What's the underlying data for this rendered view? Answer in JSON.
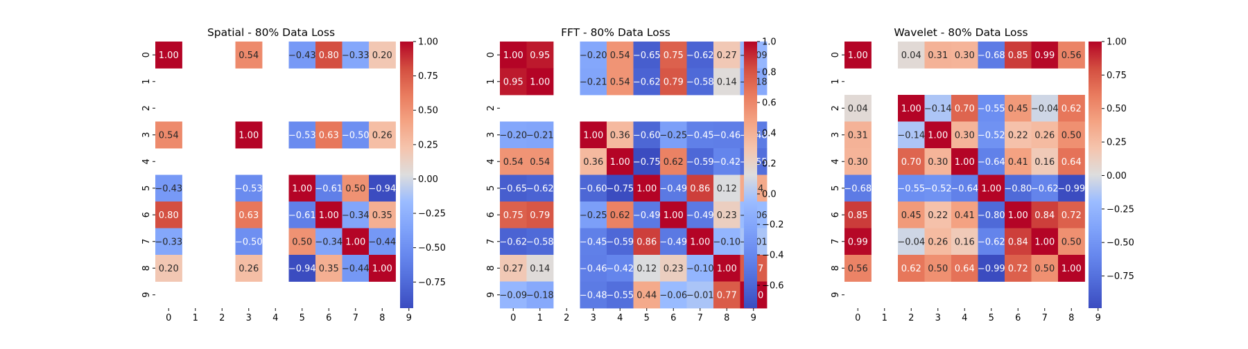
{
  "chart_data": [
    {
      "type": "heatmap",
      "title": "Spatial - 80% Data Loss",
      "x_labels": [
        "0",
        "1",
        "2",
        "3",
        "4",
        "5",
        "6",
        "7",
        "8",
        "9"
      ],
      "y_labels": [
        "0",
        "1",
        "2",
        "3",
        "4",
        "5",
        "6",
        "7",
        "8",
        "9"
      ],
      "values": [
        [
          1.0,
          null,
          null,
          0.54,
          null,
          -0.43,
          0.8,
          -0.33,
          0.2,
          null
        ],
        [
          null,
          null,
          null,
          null,
          null,
          null,
          null,
          null,
          null,
          null
        ],
        [
          null,
          null,
          null,
          null,
          null,
          null,
          null,
          null,
          null,
          null
        ],
        [
          0.54,
          null,
          null,
          1.0,
          null,
          -0.53,
          0.63,
          -0.5,
          0.26,
          null
        ],
        [
          null,
          null,
          null,
          null,
          null,
          null,
          null,
          null,
          null,
          null
        ],
        [
          -0.43,
          null,
          null,
          -0.53,
          null,
          1.0,
          -0.61,
          0.5,
          -0.94,
          null
        ],
        [
          0.8,
          null,
          null,
          0.63,
          null,
          -0.61,
          1.0,
          -0.34,
          0.35,
          null
        ],
        [
          -0.33,
          null,
          null,
          -0.5,
          null,
          0.5,
          -0.34,
          1.0,
          -0.44,
          null
        ],
        [
          0.2,
          null,
          null,
          0.26,
          null,
          -0.94,
          0.35,
          -0.44,
          1.0,
          null
        ],
        [
          null,
          null,
          null,
          null,
          null,
          null,
          null,
          null,
          null,
          null
        ]
      ],
      "vmin": -0.94,
      "vmax": 1.0,
      "colormap": "coolwarm",
      "colorbar_ticks": [
        {
          "v": 1.0,
          "label": "1.00"
        },
        {
          "v": 0.75,
          "label": "0.75"
        },
        {
          "v": 0.5,
          "label": "0.50"
        },
        {
          "v": 0.25,
          "label": "0.25"
        },
        {
          "v": 0.0,
          "label": "0.00"
        },
        {
          "v": -0.25,
          "label": "−0.25"
        },
        {
          "v": -0.5,
          "label": "−0.50"
        },
        {
          "v": -0.75,
          "label": "−0.75"
        }
      ],
      "annotation_format": "2f"
    },
    {
      "type": "heatmap",
      "title": "FFT - 80% Data Loss",
      "x_labels": [
        "0",
        "1",
        "2",
        "3",
        "4",
        "5",
        "6",
        "7",
        "8",
        "9"
      ],
      "y_labels": [
        "0",
        "1",
        "2",
        "3",
        "4",
        "5",
        "6",
        "7",
        "8",
        "9"
      ],
      "values": [
        [
          1.0,
          0.95,
          null,
          -0.2,
          0.54,
          -0.65,
          0.75,
          -0.62,
          0.27,
          -0.09
        ],
        [
          0.95,
          1.0,
          null,
          -0.21,
          0.54,
          -0.62,
          0.79,
          -0.58,
          0.14,
          -0.18
        ],
        [
          null,
          null,
          null,
          null,
          null,
          null,
          null,
          null,
          null,
          null
        ],
        [
          -0.2,
          -0.21,
          null,
          1.0,
          0.36,
          -0.6,
          -0.25,
          -0.45,
          -0.46,
          -0.48
        ],
        [
          0.54,
          0.54,
          null,
          0.36,
          1.0,
          -0.75,
          0.62,
          -0.59,
          -0.42,
          -0.55
        ],
        [
          -0.65,
          -0.62,
          null,
          -0.6,
          -0.75,
          1.0,
          -0.49,
          0.86,
          0.12,
          0.44
        ],
        [
          0.75,
          0.79,
          null,
          -0.25,
          0.62,
          -0.49,
          1.0,
          -0.49,
          0.23,
          -0.06
        ],
        [
          -0.62,
          -0.58,
          null,
          -0.45,
          -0.59,
          0.86,
          -0.49,
          1.0,
          -0.1,
          -0.01
        ],
        [
          0.27,
          0.14,
          null,
          -0.46,
          -0.42,
          0.12,
          0.23,
          -0.1,
          1.0,
          0.77
        ],
        [
          -0.09,
          -0.18,
          null,
          -0.48,
          -0.55,
          0.44,
          -0.06,
          -0.01,
          0.77,
          1.0
        ]
      ],
      "vmin": -0.75,
      "vmax": 1.0,
      "colormap": "coolwarm",
      "colorbar_ticks": [
        {
          "v": 1.0,
          "label": "1.0"
        },
        {
          "v": 0.8,
          "label": "0.8"
        },
        {
          "v": 0.6,
          "label": "0.6"
        },
        {
          "v": 0.4,
          "label": "0.4"
        },
        {
          "v": 0.2,
          "label": "0.2"
        },
        {
          "v": 0.0,
          "label": "0.0"
        },
        {
          "v": -0.2,
          "label": "−0.2"
        },
        {
          "v": -0.4,
          "label": "−0.4"
        },
        {
          "v": -0.6,
          "label": "−0.6"
        }
      ],
      "annotation_format": "2f"
    },
    {
      "type": "heatmap",
      "title": "Wavelet - 80% Data Loss",
      "x_labels": [
        "0",
        "1",
        "2",
        "3",
        "4",
        "5",
        "6",
        "7",
        "8",
        "9"
      ],
      "y_labels": [
        "0",
        "1",
        "2",
        "3",
        "4",
        "5",
        "6",
        "7",
        "8",
        "9"
      ],
      "values": [
        [
          1.0,
          null,
          0.04,
          0.31,
          0.3,
          -0.68,
          0.85,
          0.99,
          0.56,
          null
        ],
        [
          null,
          null,
          null,
          null,
          null,
          null,
          null,
          null,
          null,
          null
        ],
        [
          0.04,
          null,
          1.0,
          -0.14,
          0.7,
          -0.55,
          0.45,
          -0.04,
          0.62,
          null
        ],
        [
          0.31,
          null,
          -0.14,
          1.0,
          0.3,
          -0.52,
          0.22,
          0.26,
          0.5,
          null
        ],
        [
          0.3,
          null,
          0.7,
          0.3,
          1.0,
          -0.64,
          0.41,
          0.16,
          0.64,
          null
        ],
        [
          -0.68,
          null,
          -0.55,
          -0.52,
          -0.64,
          1.0,
          -0.8,
          -0.62,
          -0.99,
          null
        ],
        [
          0.85,
          null,
          0.45,
          0.22,
          0.41,
          -0.8,
          1.0,
          0.84,
          0.72,
          null
        ],
        [
          0.99,
          null,
          -0.04,
          0.26,
          0.16,
          -0.62,
          0.84,
          1.0,
          0.5,
          null
        ],
        [
          0.56,
          null,
          0.62,
          0.5,
          0.64,
          -0.99,
          0.72,
          0.5,
          1.0,
          null
        ],
        [
          null,
          null,
          null,
          null,
          null,
          null,
          null,
          null,
          null,
          null
        ]
      ],
      "vmin": -0.99,
      "vmax": 1.0,
      "colormap": "coolwarm",
      "colorbar_ticks": [
        {
          "v": 1.0,
          "label": "1.00"
        },
        {
          "v": 0.75,
          "label": "0.75"
        },
        {
          "v": 0.5,
          "label": "0.50"
        },
        {
          "v": 0.25,
          "label": "0.25"
        },
        {
          "v": 0.0,
          "label": "0.00"
        },
        {
          "v": -0.25,
          "label": "−0.25"
        },
        {
          "v": -0.5,
          "label": "−0.50"
        },
        {
          "v": -0.75,
          "label": "−0.75"
        }
      ],
      "annotation_format": "2f"
    }
  ]
}
